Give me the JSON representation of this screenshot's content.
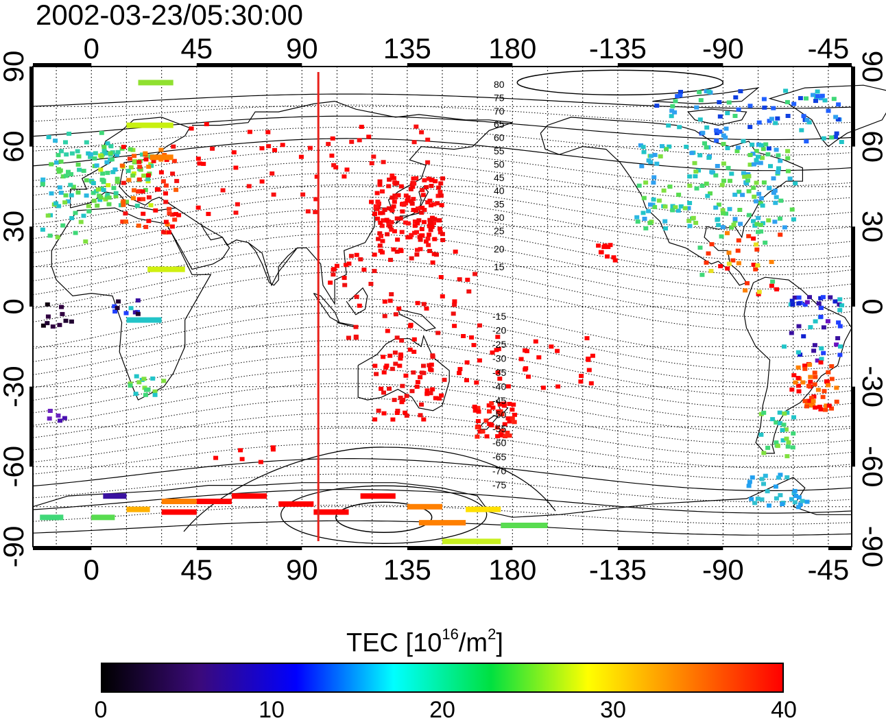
{
  "title": "2002-03-23/05:30:00",
  "map": {
    "top_lon_labels": [
      "0",
      "45",
      "90",
      "135",
      "180",
      "-135",
      "-90",
      "-45"
    ],
    "bottom_lon_labels": [
      "0",
      "45",
      "90",
      "135",
      "180",
      "-135",
      "-90",
      "-45"
    ],
    "left_lat_labels": [
      "90",
      "60",
      "30",
      "0",
      "-30",
      "-60",
      "-90"
    ],
    "right_lat_labels": [
      "90",
      "60",
      "30",
      "0",
      "-30",
      "-60",
      "-90"
    ],
    "lon_range": [
      -25,
      325
    ],
    "lat_range": [
      -90,
      90
    ],
    "grid": "dotted",
    "terminator_longitude": 97,
    "north_contour_labels": [
      "80",
      "75",
      "70",
      "65",
      "60",
      "55",
      "50",
      "45",
      "40",
      "35",
      "30",
      "25",
      "20",
      "15"
    ],
    "south_contour_labels": [
      "-15",
      "-20",
      "-25",
      "-30",
      "-35",
      "-40",
      "-45",
      "-50",
      "-55",
      "-60",
      "-65",
      "-70",
      "-75"
    ],
    "colors": {
      "terminator": "#e8201a",
      "frame": "#000000"
    }
  },
  "colorbar": {
    "title_main": "TEC  [10",
    "title_sup1": "16",
    "title_mid": "/m",
    "title_sup2": "2",
    "title_end": "]",
    "range": [
      0,
      40
    ],
    "tick_labels": [
      "0",
      "10",
      "20",
      "30",
      "40"
    ],
    "colormap": [
      "#000000",
      "#3b0a7a",
      "#0000ff",
      "#00ffff",
      "#00e040",
      "#ffff00",
      "#ff8000",
      "#ff0000"
    ]
  }
}
